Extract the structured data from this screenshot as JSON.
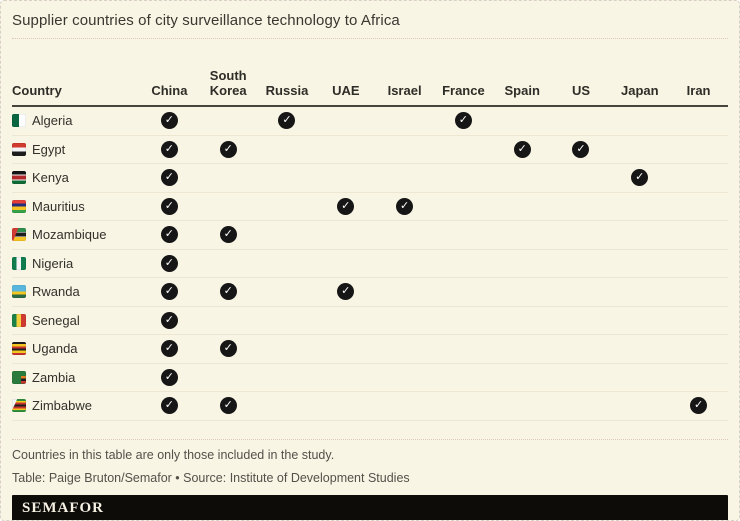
{
  "chart_data": {
    "type": "table",
    "title": "Supplier countries of city surveillance technology to Africa",
    "country_column_header": "Country",
    "supplier_columns": [
      "China",
      "South Korea",
      "Russia",
      "UAE",
      "Israel",
      "France",
      "Spain",
      "US",
      "Japan",
      "Iran"
    ],
    "rows": [
      {
        "country": "Algeria",
        "flag": "algeria",
        "suppliers": [
          "China",
          "Russia",
          "France"
        ]
      },
      {
        "country": "Egypt",
        "flag": "egypt",
        "suppliers": [
          "China",
          "South Korea",
          "Spain",
          "US"
        ]
      },
      {
        "country": "Kenya",
        "flag": "kenya",
        "suppliers": [
          "China",
          "Japan"
        ]
      },
      {
        "country": "Mauritius",
        "flag": "mauritius",
        "suppliers": [
          "China",
          "UAE",
          "Israel"
        ]
      },
      {
        "country": "Mozambique",
        "flag": "mozambique",
        "suppliers": [
          "China",
          "South Korea"
        ]
      },
      {
        "country": "Nigeria",
        "flag": "nigeria",
        "suppliers": [
          "China"
        ]
      },
      {
        "country": "Rwanda",
        "flag": "rwanda",
        "suppliers": [
          "China",
          "South Korea",
          "UAE"
        ]
      },
      {
        "country": "Senegal",
        "flag": "senegal",
        "suppliers": [
          "China"
        ]
      },
      {
        "country": "Uganda",
        "flag": "uganda",
        "suppliers": [
          "China",
          "South Korea"
        ]
      },
      {
        "country": "Zambia",
        "flag": "zambia",
        "suppliers": [
          "China"
        ]
      },
      {
        "country": "Zimbabwe",
        "flag": "zimbabwe",
        "suppliers": [
          "China",
          "South Korea",
          "Iran"
        ]
      }
    ],
    "check_glyph": "✓",
    "legend_position": "none",
    "grid": "row-separators"
  },
  "footer": {
    "note": "Countries in this table are only those included in the study.",
    "credit": "Table: Paige Bruton/Semafor • Source: Institute of Development Studies",
    "logo": "SEMAFOR"
  },
  "colors": {
    "background": "#f8f5e4",
    "card_border": "#d9cfc7",
    "dotted_divider": "#dcc8c1",
    "row_separator": "#ece6d2",
    "header_rule": "#46453b",
    "check_circle": "#161616",
    "logo_bar": "#0d0c09"
  }
}
